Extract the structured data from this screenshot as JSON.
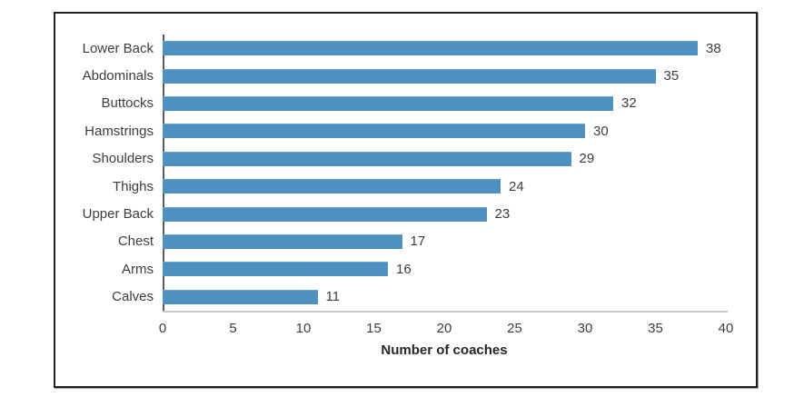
{
  "chart_data": {
    "type": "bar",
    "orientation": "horizontal",
    "title": "",
    "xlabel": "Number of coaches",
    "ylabel": "",
    "categories": [
      "Lower Back",
      "Abdominals",
      "Buttocks",
      "Hamstrings",
      "Shoulders",
      "Thighs",
      "Upper Back",
      "Chest",
      "Arms",
      "Calves"
    ],
    "values": [
      38,
      35,
      32,
      30,
      29,
      24,
      23,
      17,
      16,
      11
    ],
    "xlim": [
      0,
      40
    ],
    "xticks": [
      0,
      5,
      10,
      15,
      20,
      25,
      30,
      35,
      40
    ],
    "grid": false,
    "legend": false,
    "value_labels_shown": true,
    "colors": {
      "bar": "#4e91c0",
      "bar_highlight": "#6aa5cc",
      "frame_border": "#1f1f1f",
      "y_axis_line": "#595959",
      "x_axis_line": "#c6c6c6",
      "text": "#3d3d3d"
    }
  }
}
